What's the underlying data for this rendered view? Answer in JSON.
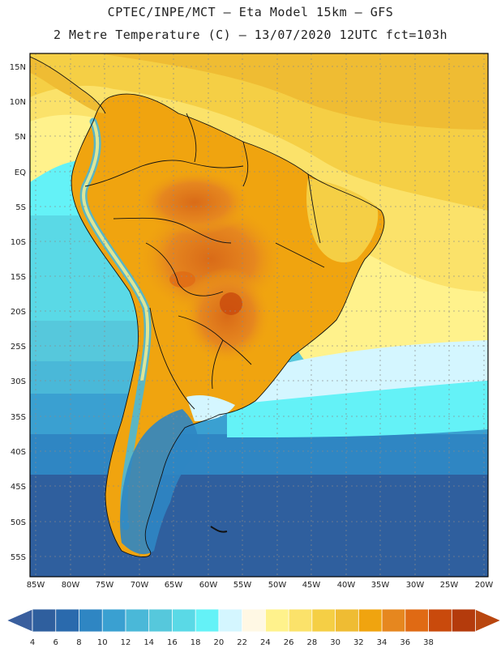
{
  "title": {
    "line1": "CPTEC/INPE/MCT –  Eta Model 15km – GFS",
    "line2": "2 Metre Temperature (C) – 13/07/2020 12UTC fct=103h"
  },
  "axes": {
    "latitude_labels": [
      "15N",
      "10N",
      "5N",
      "EQ",
      "5S",
      "10S",
      "15S",
      "20S",
      "25S",
      "30S",
      "35S",
      "40S",
      "45S",
      "50S",
      "55S"
    ],
    "longitude_labels": [
      "85W",
      "80W",
      "75W",
      "70W",
      "65W",
      "60W",
      "55W",
      "50W",
      "45W",
      "40W",
      "35W",
      "30W",
      "25W",
      "20W"
    ]
  },
  "colorbar": {
    "ticks": [
      "4",
      "6",
      "8",
      "10",
      "12",
      "14",
      "16",
      "18",
      "20",
      "22",
      "24",
      "26",
      "28",
      "30",
      "32",
      "34",
      "36",
      "38"
    ],
    "colors": [
      "#2f5f9e",
      "#2a6aad",
      "#2f86c3",
      "#3aa0d1",
      "#4ab8d8",
      "#56c8dc",
      "#5ad9e6",
      "#64f2f7",
      "#d4f6ff",
      "#fff8e4",
      "#fff28c",
      "#fbe26a",
      "#f5cf45",
      "#efbc33",
      "#f0a40f",
      "#e6871f",
      "#e06a14",
      "#c94a0c",
      "#b43b0c"
    ],
    "arrow_low_color": "#3a5f9e",
    "arrow_high_color": "#b9460f"
  }
}
